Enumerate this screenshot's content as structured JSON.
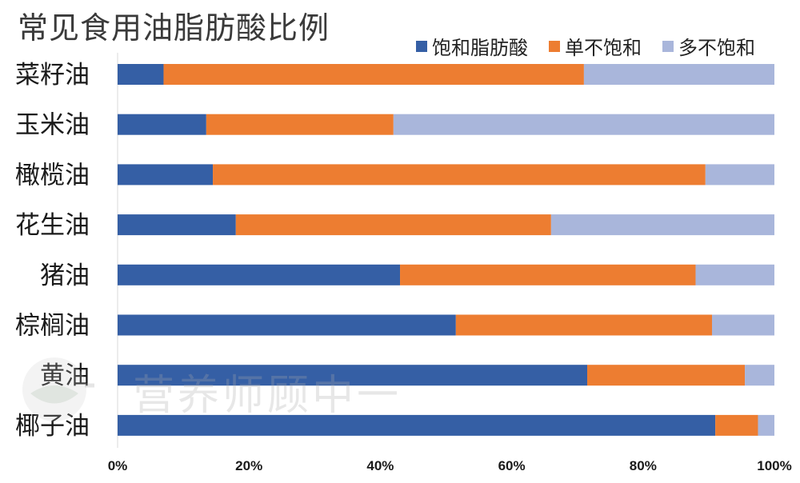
{
  "chart_data": {
    "type": "bar",
    "orientation": "horizontal",
    "stacked": true,
    "title": "常见食用油脂肪酸比例",
    "categories": [
      "菜籽油",
      "玉米油",
      "橄榄油",
      "花生油",
      "猪油",
      "棕榈油",
      "黄油",
      "椰子油"
    ],
    "series": [
      {
        "name": "饱和脂肪酸",
        "color": "#355fa5",
        "values": [
          7,
          13.5,
          14.5,
          18,
          43,
          51.5,
          71.5,
          91
        ]
      },
      {
        "name": "单不饱和",
        "color": "#ed7d31",
        "values": [
          64,
          28.5,
          75,
          48,
          45,
          39,
          24,
          6.5
        ]
      },
      {
        "name": "多不饱和",
        "color": "#a9b6db",
        "values": [
          29,
          58,
          10.5,
          34,
          12,
          9.5,
          4.5,
          2.5
        ]
      }
    ],
    "xlim": [
      0,
      100
    ],
    "x_ticks": [
      "0%",
      "20%",
      "40%",
      "60%",
      "80%",
      "100%"
    ],
    "legend_position": "top-right",
    "grid": false
  },
  "watermark": {
    "text": "营养师顾中一"
  },
  "colors": {
    "axis": "#d9d9d9",
    "text": "#1a1a1a"
  }
}
